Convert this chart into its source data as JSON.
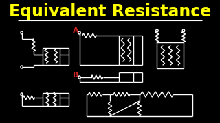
{
  "bg_color": "#000000",
  "title": "Equivalent Resistance",
  "title_color": "#FFFF00",
  "title_fontsize": 17,
  "line_color": "#FFFFFF",
  "label_A_color": "#CC2222",
  "label_B_color": "#CC2222",
  "figsize": [
    3.2,
    1.8
  ],
  "dpi": 100
}
